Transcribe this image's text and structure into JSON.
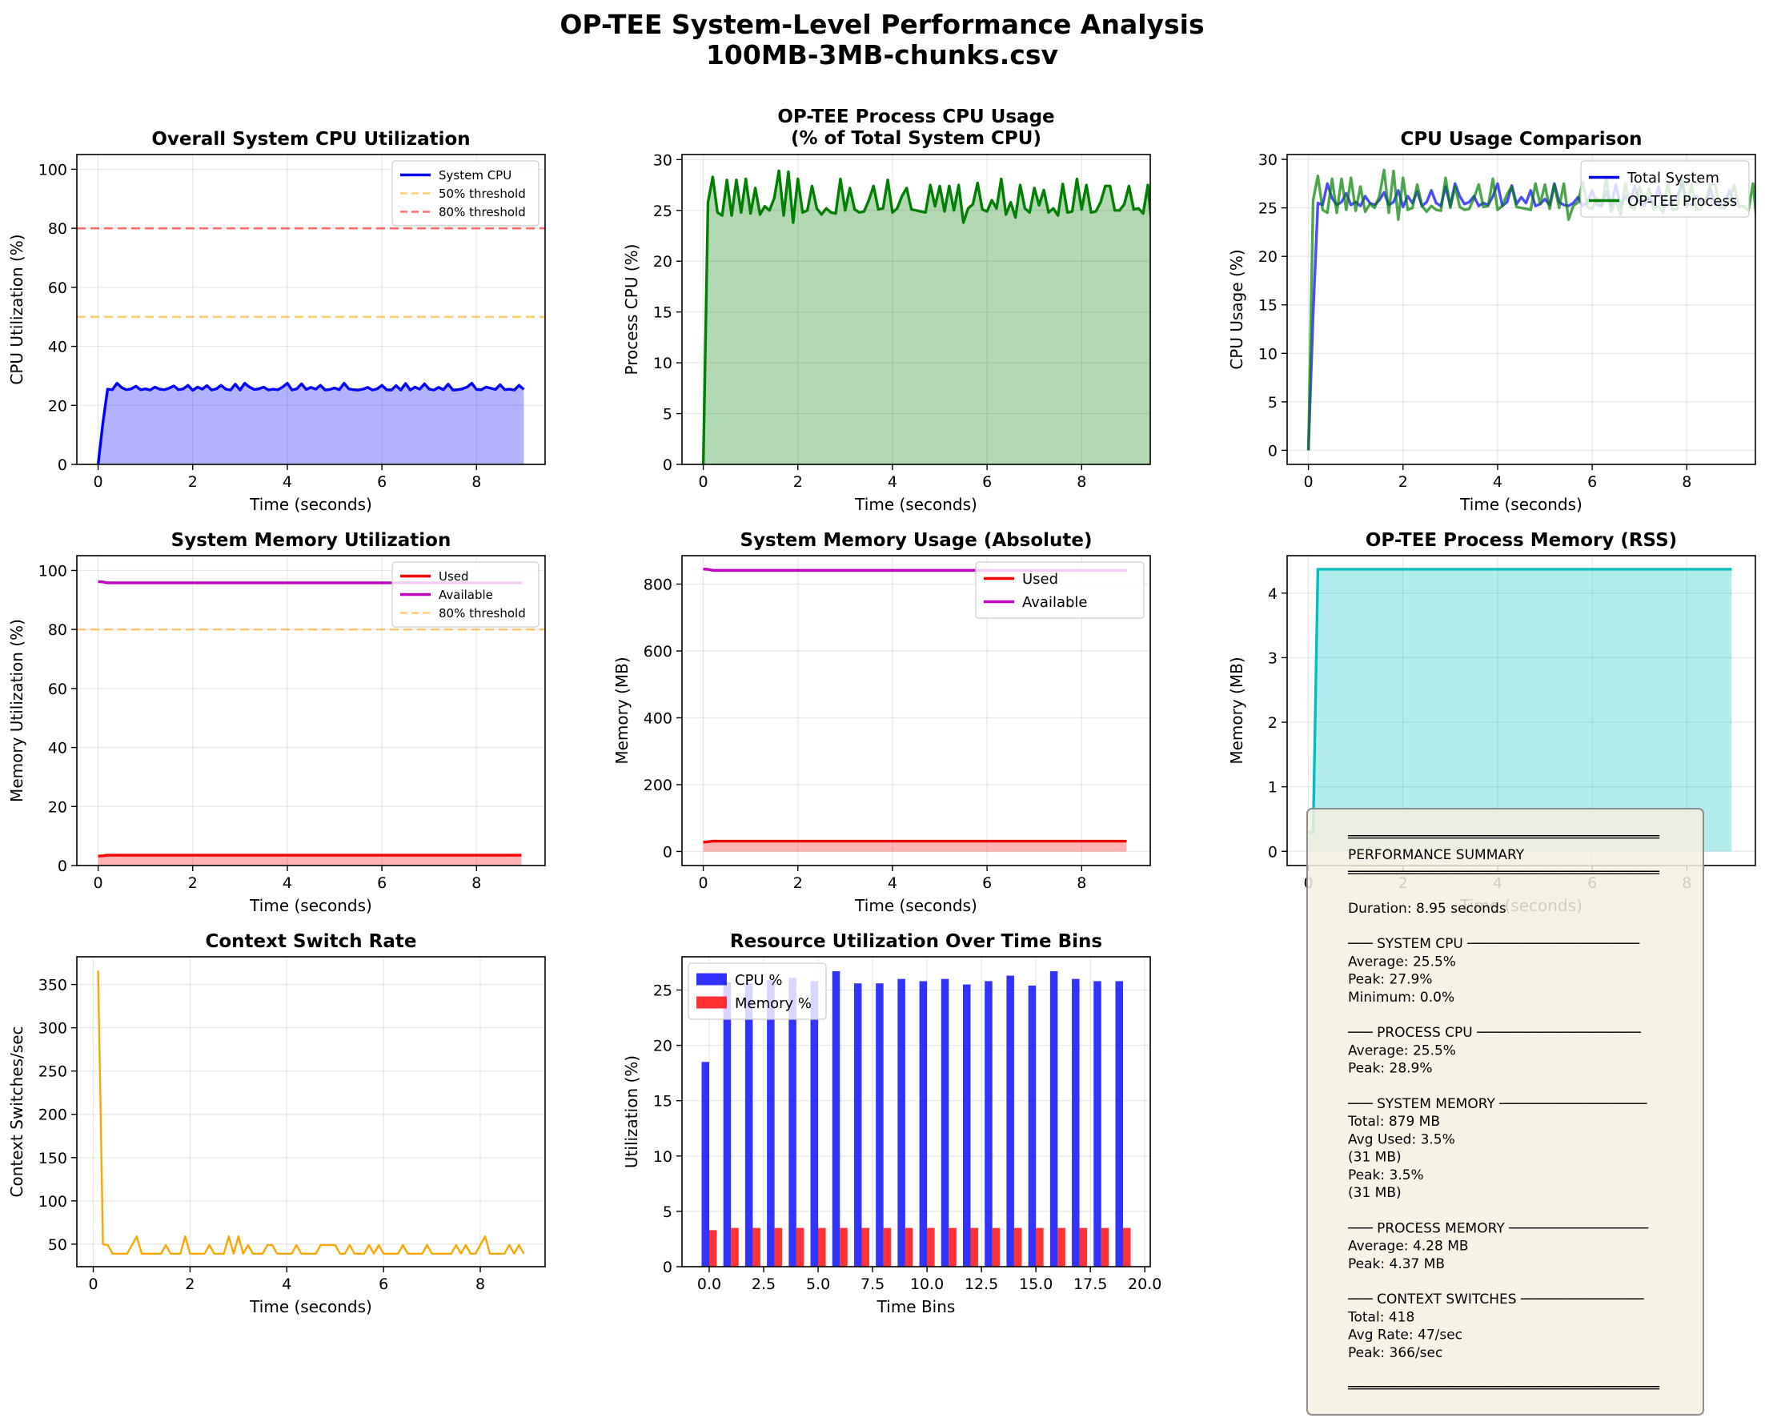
{
  "suptitle": {
    "line1": "OP-TEE System-Level Performance Analysis",
    "line2": "100MB-3MB-chunks.csv"
  },
  "colors": {
    "system_cpu": "#0000ff",
    "process_cpu": "#008000",
    "used": "#ff0000",
    "available": "#bf00bf",
    "rss": "#00bfbf",
    "ctx": "#ffa500",
    "threshold50": "#ffa500",
    "threshold80": "#ff0000",
    "summary_bg": "#f5f0e1"
  },
  "chart_data": [
    {
      "id": "sys_cpu",
      "type": "area",
      "title": "Overall System CPU Utilization",
      "xlabel": "Time (seconds)",
      "ylabel": "CPU Utilization (%)",
      "xlim": [
        -0.45,
        9.45
      ],
      "ylim": [
        0,
        105
      ],
      "xticks": [
        0,
        2,
        4,
        6,
        8
      ],
      "yticks": [
        0,
        20,
        40,
        60,
        80,
        100
      ],
      "x_step": 0.1,
      "series": [
        {
          "name": "System CPU",
          "color": "#0000ff",
          "fill": true,
          "values": [
            0,
            14,
            25.5,
            25.3,
            27.5,
            26,
            25.3,
            25.6,
            26.5,
            25.3,
            25.6,
            25.2,
            26.2,
            25.5,
            25.3,
            25.8,
            26.6,
            25.3,
            25.6,
            26.8,
            25.1,
            26.2,
            25.5,
            26.7,
            25.2,
            25.6,
            26.8,
            25.5,
            25.2,
            27.2,
            25.2,
            27.5,
            26.2,
            25.4,
            25.6,
            26.2,
            25.2,
            25.5,
            25.3,
            26.2,
            27.5,
            25.2,
            25.6,
            27.3,
            25.4,
            26.1,
            25.5,
            26.8,
            25.2,
            25.4,
            25.9,
            25.3,
            27.5,
            25.6,
            25.3,
            25.2,
            25.5,
            26.1,
            25.2,
            25.6,
            26.8,
            25.3,
            25.2,
            26.7,
            25.2,
            27.4,
            25.2,
            26.2,
            25.5,
            27.3,
            25.5,
            25.2,
            26.1,
            25.3,
            27.2,
            25.2,
            25.3,
            25.6,
            26.2,
            27.5,
            25.4,
            25.3,
            26.2,
            25.8,
            25.4,
            27,
            25.3,
            25.5,
            25.2,
            26.8,
            25.4
          ]
        }
      ],
      "hlines": [
        {
          "name": "50% threshold",
          "y": 50,
          "color": "#ffa500"
        },
        {
          "name": "80% threshold",
          "y": 80,
          "color": "#ff0000"
        }
      ],
      "legend": "upper-right"
    },
    {
      "id": "proc_cpu",
      "type": "area",
      "title_lines": [
        "OP-TEE Process CPU Usage",
        "(% of Total System CPU)"
      ],
      "xlabel": "Time (seconds)",
      "ylabel": "Process CPU (%)",
      "xlim": [
        -0.45,
        9.45
      ],
      "ylim": [
        0,
        30.5
      ],
      "xticks": [
        0,
        2,
        4,
        6,
        8
      ],
      "yticks": [
        0,
        5,
        10,
        15,
        20,
        25,
        30
      ],
      "x_step": 0.1,
      "series": [
        {
          "name": "OP-TEE Process",
          "color": "#008000",
          "fill": true,
          "values": [
            0,
            25.8,
            28.3,
            24.8,
            24.5,
            28,
            24.5,
            28,
            24.8,
            28.1,
            24.7,
            27.2,
            24.6,
            25.4,
            25,
            26.2,
            28.9,
            24.5,
            28.8,
            23.8,
            28.1,
            24.8,
            25,
            27.4,
            25.2,
            24.6,
            25.2,
            24.8,
            24.7,
            28.1,
            25,
            27.2,
            25.1,
            24.8,
            24.9,
            26,
            27.4,
            25.1,
            25.2,
            28,
            24.8,
            25.2,
            26.4,
            27.2,
            25.1,
            25,
            24.9,
            24.8,
            27.5,
            25.4,
            27.4,
            24.9,
            27.4,
            25,
            27.5,
            23.8,
            25.2,
            25.6,
            27.7,
            25.1,
            24.9,
            26,
            25.2,
            28.1,
            24.6,
            25.8,
            24.3,
            27.5,
            25.2,
            24.8,
            27.2,
            25.5,
            27,
            24.8,
            25.2,
            24.5,
            27.6,
            24.8,
            24.9,
            28.1,
            25.1,
            27.5,
            24.8,
            24.9,
            25.8,
            27.4,
            27.4,
            25,
            25,
            25.6,
            27.4,
            25.1,
            25.2,
            24.7,
            27.5,
            22.5,
            27.6,
            24.8
          ]
        }
      ],
      "legend": "none"
    },
    {
      "id": "cpu_compare",
      "type": "line",
      "title": "CPU Usage Comparison",
      "xlabel": "Time (seconds)",
      "ylabel": "CPU Usage (%)",
      "xlim": [
        -0.45,
        9.45
      ],
      "ylim": [
        -1.45,
        30.5
      ],
      "xticks": [
        0,
        2,
        4,
        6,
        8
      ],
      "yticks": [
        0,
        5,
        10,
        15,
        20,
        25,
        30
      ],
      "x_step": 0.1,
      "series": [
        {
          "name": "Total System",
          "color": "#0000ff",
          "ref": "sys_cpu"
        },
        {
          "name": "OP-TEE Process",
          "color": "#008000",
          "ref": "proc_cpu"
        }
      ],
      "legend": "upper-right"
    },
    {
      "id": "sys_mem_pct",
      "type": "line",
      "title": "System Memory Utilization",
      "xlabel": "Time (seconds)",
      "ylabel": "Memory Utilization (%)",
      "xlim": [
        -0.45,
        9.45
      ],
      "ylim": [
        0,
        105
      ],
      "xticks": [
        0,
        2,
        4,
        6,
        8
      ],
      "yticks": [
        0,
        20,
        40,
        60,
        80,
        100
      ],
      "series": [
        {
          "name": "Used",
          "color": "#ff0000",
          "fill": true,
          "x": [
            0,
            0.1,
            0.2,
            8.95
          ],
          "values": [
            3.2,
            3.3,
            3.5,
            3.5
          ]
        },
        {
          "name": "Available",
          "color": "#bf00bf",
          "x": [
            0,
            0.1,
            0.2,
            8.95
          ],
          "values": [
            96.2,
            96.1,
            95.8,
            95.8
          ]
        }
      ],
      "hlines": [
        {
          "name": "80% threshold",
          "y": 80,
          "color": "#ffa500"
        }
      ],
      "legend": "upper-right"
    },
    {
      "id": "sys_mem_abs",
      "type": "line",
      "title": "System Memory Usage (Absolute)",
      "xlabel": "Time (seconds)",
      "ylabel": "Memory (MB)",
      "xlim": [
        -0.45,
        9.45
      ],
      "ylim": [
        -42,
        885
      ],
      "xticks": [
        0,
        2,
        4,
        6,
        8
      ],
      "yticks": [
        0,
        200,
        400,
        600,
        800
      ],
      "series": [
        {
          "name": "Used",
          "color": "#ff0000",
          "fill": true,
          "x": [
            0,
            0.1,
            0.2,
            8.95
          ],
          "values": [
            28,
            29,
            31,
            31
          ]
        },
        {
          "name": "Available",
          "color": "#bf00bf",
          "x": [
            0,
            0.1,
            0.2,
            8.95
          ],
          "values": [
            845,
            844,
            841,
            841
          ]
        }
      ],
      "legend": "upper-right"
    },
    {
      "id": "rss",
      "type": "area",
      "title": "OP-TEE Process Memory (RSS)",
      "xlabel": "Time (seconds)",
      "ylabel": "Memory (MB)",
      "xlim": [
        -0.45,
        9.45
      ],
      "ylim": [
        -0.22,
        4.58
      ],
      "xticks": [
        0,
        2,
        4,
        6,
        8
      ],
      "yticks": [
        0,
        1,
        2,
        3,
        4
      ],
      "series": [
        {
          "name": "RSS",
          "color": "#00bfbf",
          "fill": true,
          "x": [
            0,
            0.1,
            0.2,
            8.95
          ],
          "values": [
            0.29,
            0.29,
            4.37,
            4.37
          ]
        }
      ],
      "legend": "none"
    },
    {
      "id": "ctx",
      "type": "line",
      "title": "Context Switch Rate",
      "xlabel": "Time (seconds)",
      "ylabel": "Context Switches/sec",
      "xlim": [
        -0.34,
        9.34
      ],
      "ylim": [
        24,
        382
      ],
      "xticks": [
        0,
        2,
        4,
        6,
        8
      ],
      "yticks": [
        50,
        100,
        150,
        200,
        250,
        300,
        350
      ],
      "x_start": 0.1,
      "x_step": 0.1,
      "series": [
        {
          "name": "Context switches",
          "color": "#ffa500",
          "values": [
            366,
            50,
            49,
            39,
            39,
            39,
            39,
            49,
            59,
            39,
            39,
            39,
            39,
            39,
            49,
            39,
            39,
            39,
            59,
            39,
            39,
            39,
            39,
            49,
            39,
            39,
            39,
            59,
            39,
            59,
            39,
            49,
            39,
            39,
            39,
            49,
            49,
            39,
            39,
            39,
            39,
            49,
            39,
            39,
            39,
            39,
            49,
            49,
            49,
            49,
            39,
            39,
            49,
            39,
            39,
            39,
            49,
            39,
            49,
            39,
            39,
            39,
            39,
            49,
            39,
            39,
            39,
            39,
            49,
            39,
            39,
            39,
            39,
            39,
            49,
            39,
            49,
            39,
            39,
            49,
            59,
            39,
            39,
            39,
            39,
            49,
            39,
            49,
            39
          ]
        }
      ],
      "legend": "none"
    },
    {
      "id": "bins",
      "type": "bar",
      "title": "Resource Utilization Over Time Bins",
      "xlabel": "Time Bins",
      "ylabel": "Utilization (%)",
      "xlim": [
        -1.25,
        20.25
      ],
      "ylim": [
        0,
        28
      ],
      "xticks": [
        0,
        2.5,
        5,
        7.5,
        10,
        12.5,
        15,
        17.5,
        20
      ],
      "xtick_labels": [
        "0.0",
        "2.5",
        "5.0",
        "7.5",
        "10.0",
        "12.5",
        "15.0",
        "17.5",
        "20.0"
      ],
      "yticks": [
        0,
        5,
        10,
        15,
        20,
        25
      ],
      "categories": [
        0,
        1,
        2,
        3,
        4,
        5,
        6,
        7,
        8,
        9,
        10,
        11,
        12,
        13,
        14,
        15,
        16,
        17,
        18,
        19
      ],
      "series": [
        {
          "name": "CPU %",
          "color": "#0000ff",
          "values": [
            18.5,
            25.7,
            25.6,
            25.9,
            26.1,
            25.8,
            26.7,
            25.6,
            25.6,
            26.0,
            25.8,
            26.0,
            25.5,
            25.8,
            26.3,
            25.4,
            26.7,
            26.0,
            25.8,
            25.8
          ]
        },
        {
          "name": "Memory %",
          "color": "#ff0000",
          "values": [
            3.3,
            3.5,
            3.5,
            3.5,
            3.5,
            3.5,
            3.5,
            3.5,
            3.5,
            3.5,
            3.5,
            3.5,
            3.5,
            3.5,
            3.5,
            3.5,
            3.5,
            3.5,
            3.5,
            3.5
          ]
        }
      ],
      "legend": "upper-left"
    }
  ],
  "summary": {
    "lines": [
      "══════════════════════════════════════",
      "     PERFORMANCE SUMMARY",
      "══════════════════════════════════════",
      "",
      "Duration: 8.95 seconds",
      "",
      "─── SYSTEM CPU ─────────────────────",
      "Average:  25.5%",
      "Peak:     27.9%",
      "Minimum:  0.0%",
      "",
      "─── PROCESS CPU ────────────────────",
      "Average:  25.5%",
      "Peak:     28.9%",
      "",
      "─── SYSTEM MEMORY ──────────────────",
      "Total:    879 MB",
      "Avg Used: 3.5%",
      "          (31 MB)",
      "Peak:     3.5%",
      "          (31 MB)",
      "",
      "─── PROCESS MEMORY ─────────────────",
      "Average:  4.28 MB",
      "Peak:     4.37 MB",
      "",
      "─── CONTEXT SWITCHES ───────────────",
      "Total:    418",
      "Avg Rate: 47/sec",
      "Peak:     366/sec",
      "",
      "══════════════════════════════════════"
    ]
  }
}
